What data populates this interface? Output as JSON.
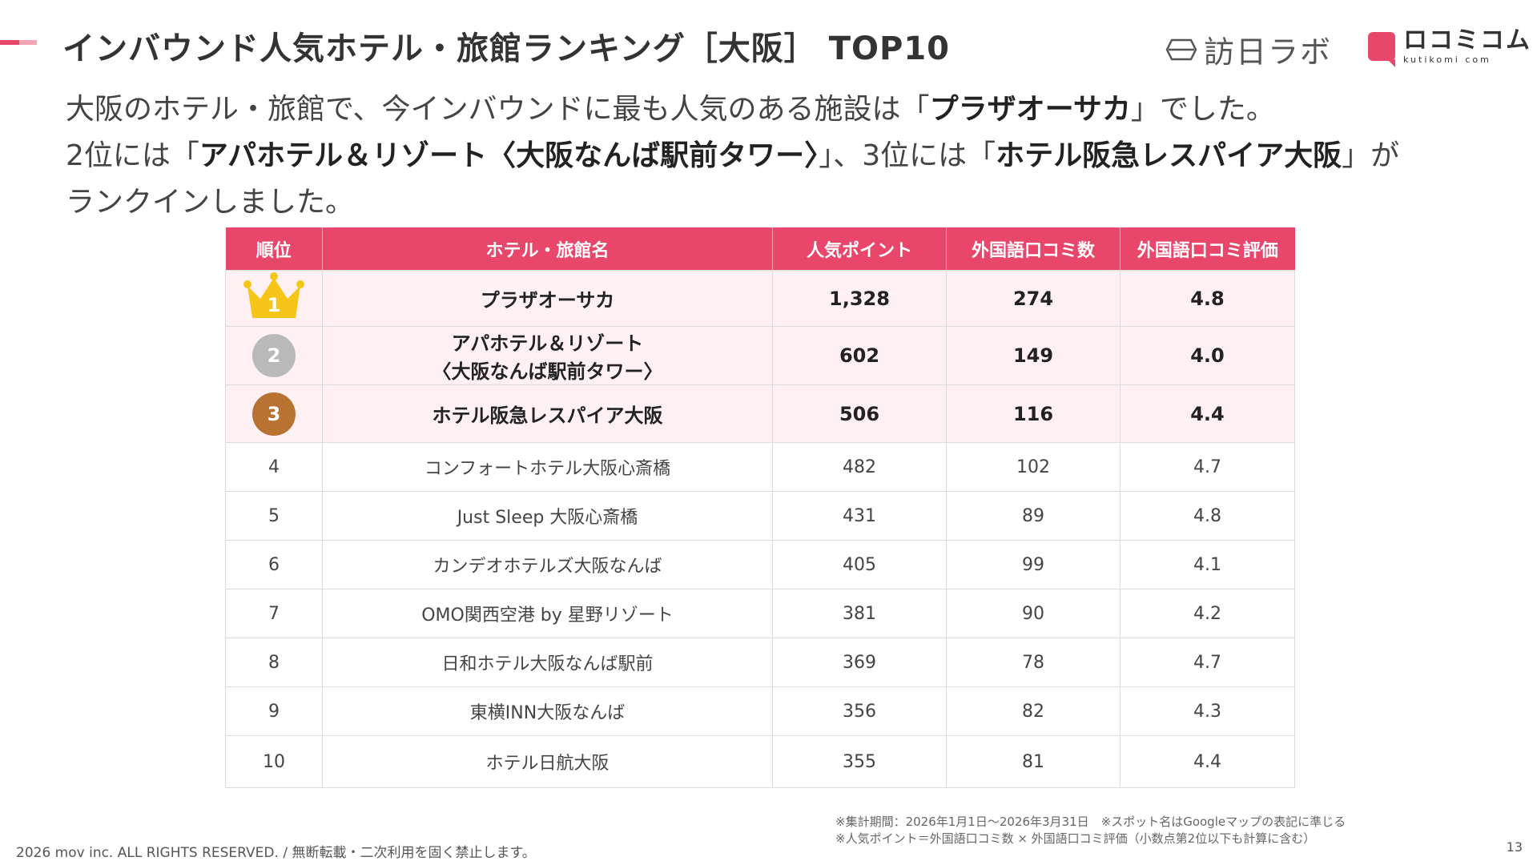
{
  "header": {
    "title": "インバウンド人気ホテル・旅館ランキング［大阪］ TOP10",
    "logo_houjin": "訪日ラボ",
    "logo_kutikomi": "ロコミコム",
    "logo_kutikomi_sub": "kutikomi com"
  },
  "intro": {
    "line1_a": "大阪のホテル・旅館で、今インバウンドに最も人気のある施設は「",
    "line1_b": "プラザオーサカ",
    "line1_c": "」でした。",
    "line2_a": "2位には「",
    "line2_b": "アパホテル＆リゾート〈大阪なんば駅前タワー〉",
    "line2_c": "」、3位には「",
    "line2_d": "ホテル阪急レスパイア大阪",
    "line2_e": "」が",
    "line3": "ランクインしました。"
  },
  "table": {
    "headers": [
      "順位",
      "ホテル・旅館名",
      "人気ポイント",
      "外国語口コミ数",
      "外国語口コミ評価"
    ],
    "rows": [
      {
        "rank": "1",
        "name": "プラザオーサカ",
        "name2": "",
        "points": "1,328",
        "reviews": "274",
        "rating": "4.8"
      },
      {
        "rank": "2",
        "name": "アパホテル＆リゾート",
        "name2": "〈大阪なんば駅前タワー〉",
        "points": "602",
        "reviews": "149",
        "rating": "4.0"
      },
      {
        "rank": "3",
        "name": "ホテル阪急レスパイア大阪",
        "name2": "",
        "points": "506",
        "reviews": "116",
        "rating": "4.4"
      },
      {
        "rank": "4",
        "name": "コンフォートホテル大阪心斎橋",
        "name2": "",
        "points": "482",
        "reviews": "102",
        "rating": "4.7"
      },
      {
        "rank": "5",
        "name": "Just Sleep 大阪心斎橋",
        "name2": "",
        "points": "431",
        "reviews": "89",
        "rating": "4.8"
      },
      {
        "rank": "6",
        "name": "カンデオホテルズ大阪なんば",
        "name2": "",
        "points": "405",
        "reviews": "99",
        "rating": "4.1"
      },
      {
        "rank": "7",
        "name": "OMO関西空港 by 星野リゾート",
        "name2": "",
        "points": "381",
        "reviews": "90",
        "rating": "4.2"
      },
      {
        "rank": "8",
        "name": "日和ホテル大阪なんば駅前",
        "name2": "",
        "points": "369",
        "reviews": "78",
        "rating": "4.7"
      },
      {
        "rank": "9",
        "name": "東横INN大阪なんば",
        "name2": "",
        "points": "356",
        "reviews": "82",
        "rating": "4.3"
      },
      {
        "rank": "10",
        "name": "ホテル日航大阪",
        "name2": "",
        "points": "355",
        "reviews": "81",
        "rating": "4.4"
      }
    ]
  },
  "notes": {
    "line1": "※集計期間：2026年1月1日〜2026年3月31日　※スポット名はGoogleマップの表記に準じる",
    "line2": "※人気ポイント＝外国語口コミ数 × 外国語口コミ評価（小数点第2位以下も計算に含む）"
  },
  "footer": {
    "copyright": "2026 mov inc. ALL RIGHTS RESERVED. / 無断転載・二次利用を固く禁止します。",
    "page": "13"
  },
  "colors": {
    "accent": "#e8466a",
    "accent_light": "#f3a5b5",
    "top_row_bg": "#fff0f4",
    "gold": "#f5c518",
    "silver": "#b9b9b9",
    "bronze": "#b87333"
  },
  "icons": [
    "crown-icon",
    "silver-medal-icon",
    "bronze-medal-icon"
  ]
}
